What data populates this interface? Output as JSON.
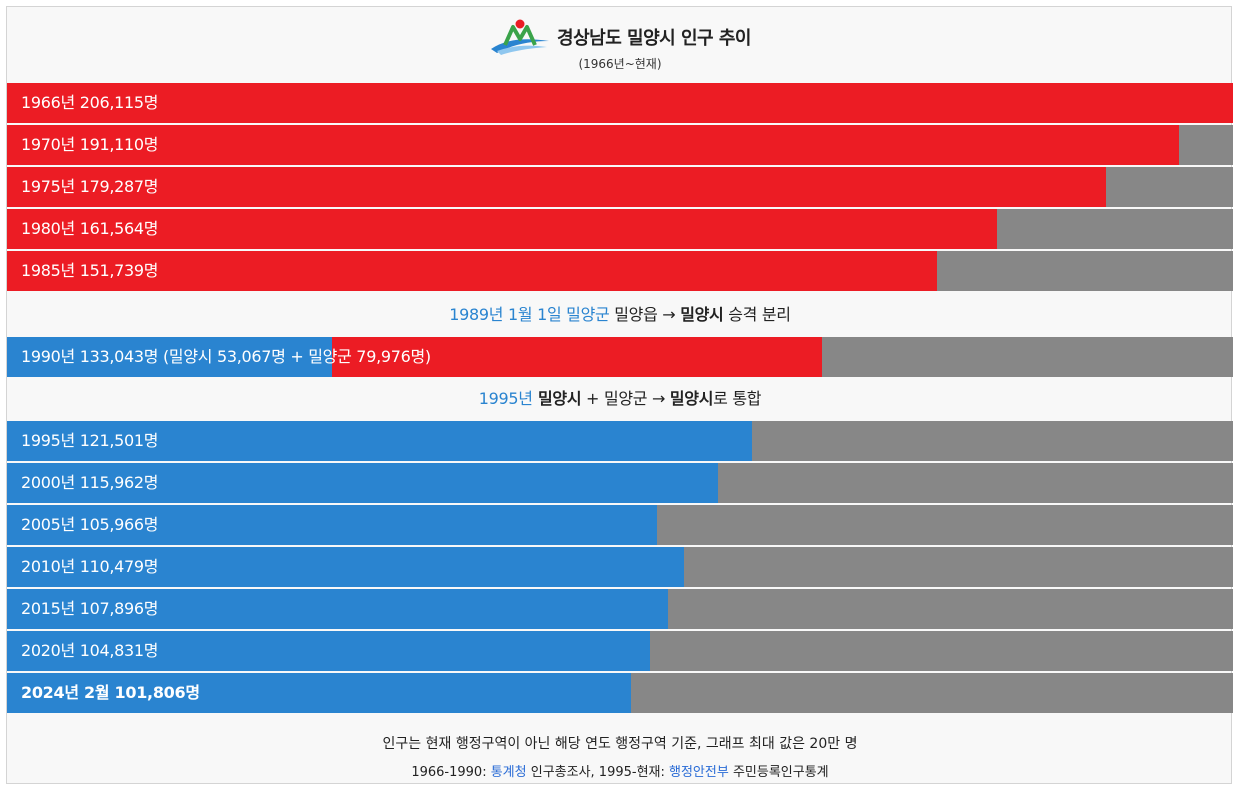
{
  "header": {
    "title": "경상남도 밀양시 인구 추이",
    "subtitle": "(1966년~현재)"
  },
  "colors": {
    "red": "#ec1c24",
    "blue": "#2a84d0",
    "remainder": "#878787"
  },
  "chart_data": {
    "type": "bar",
    "orientation": "horizontal",
    "xlim": [
      0,
      200000
    ],
    "rows": [
      {
        "year": 1966,
        "label": "1966년 206,115명",
        "value": 206115,
        "color": "red"
      },
      {
        "year": 1970,
        "label": "1970년 191,110명",
        "value": 191110,
        "color": "red"
      },
      {
        "year": 1975,
        "label": "1975년 179,287명",
        "value": 179287,
        "color": "red"
      },
      {
        "year": 1980,
        "label": "1980년 161,564명",
        "value": 161564,
        "color": "red"
      },
      {
        "year": 1985,
        "label": "1985년 151,739명",
        "value": 151739,
        "color": "red"
      },
      {
        "year": 1990,
        "label": "1990년 133,043명 (밀양시 53,067명 + 밀양군 79,976명)",
        "value": 133043,
        "segments": [
          {
            "name": "밀양시",
            "value": 53067,
            "color": "blue"
          },
          {
            "name": "밀양군",
            "value": 79976,
            "color": "red"
          }
        ]
      },
      {
        "year": 1995,
        "label": "1995년 121,501명",
        "value": 121501,
        "color": "blue"
      },
      {
        "year": 2000,
        "label": "2000년 115,962명",
        "value": 115962,
        "color": "blue"
      },
      {
        "year": 2005,
        "label": "2005년 105,966명",
        "value": 105966,
        "color": "blue"
      },
      {
        "year": 2010,
        "label": "2010년 110,479명",
        "value": 110479,
        "color": "blue"
      },
      {
        "year": 2015,
        "label": "2015년 107,896명",
        "value": 107896,
        "color": "blue"
      },
      {
        "year": 2020,
        "label": "2020년 104,831명",
        "value": 104831,
        "color": "blue"
      },
      {
        "year": 2024,
        "label": "2024년 2월 101,806명",
        "value": 101806,
        "color": "blue",
        "bold": true
      }
    ]
  },
  "notes": {
    "n1989": {
      "date": "1989년 1월 1일 밀양군",
      "rest": " 밀양읍 → ",
      "city": "밀양시",
      "tail": " 승격 분리"
    },
    "n1995": {
      "date": "1995년",
      "city1": " 밀양시",
      "mid": " + 밀양군 → ",
      "city2": "밀양시",
      "tail": "로 통합"
    }
  },
  "footer": {
    "note": "인구는 현재 행정구역이 아닌 해당 연도 행정구역 기준, 그래프 최대 값은 20만 명",
    "src_prefix": "1966-1990: ",
    "src_link1": "통계청",
    "src_mid": " 인구총조사, 1995-현재: ",
    "src_link2": "행정안전부",
    "src_suffix": " 주민등록인구통계"
  }
}
